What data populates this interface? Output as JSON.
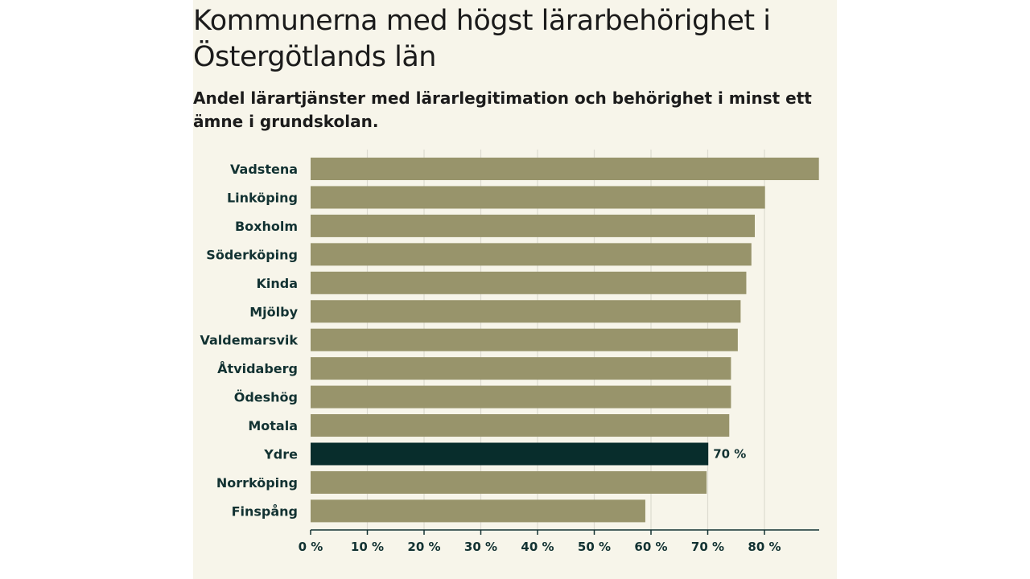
{
  "chart_data": {
    "type": "bar",
    "orientation": "horizontal",
    "title": "Kommunerna med högst lärarbehörighet i Östergötlands län",
    "subtitle": "Andel lärartjänster med lärarlegitimation och behörighet i minst ett ämne i grundskolan.",
    "categories": [
      "Vadstena",
      "Linköping",
      "Boxholm",
      "Söderköping",
      "Kinda",
      "Mjölby",
      "Valdemarsvik",
      "Åtvidaberg",
      "Ödeshög",
      "Motala",
      "Ydre",
      "Norrköping",
      "Finspång"
    ],
    "values": [
      89.6,
      80.1,
      78.3,
      77.7,
      76.8,
      75.8,
      75.3,
      74.1,
      74.1,
      73.8,
      70.1,
      69.8,
      59.0
    ],
    "highlight": "Ydre",
    "highlight_label": "70 %",
    "xlim": [
      0,
      90
    ],
    "xticks": [
      0,
      10,
      20,
      30,
      40,
      50,
      60,
      70,
      80
    ],
    "tick_labels": [
      "0 %",
      "10 %",
      "20 %",
      "30 %",
      "40 %",
      "50 %",
      "60 %",
      "70 %",
      "80 %"
    ],
    "xlabel": "",
    "ylabel": "",
    "grid": true,
    "colors": {
      "bar": "#98946b",
      "highlight": "#082d2c",
      "grid": "#dddbd0",
      "axis": "#123232",
      "background": "#f7f5ea"
    }
  }
}
